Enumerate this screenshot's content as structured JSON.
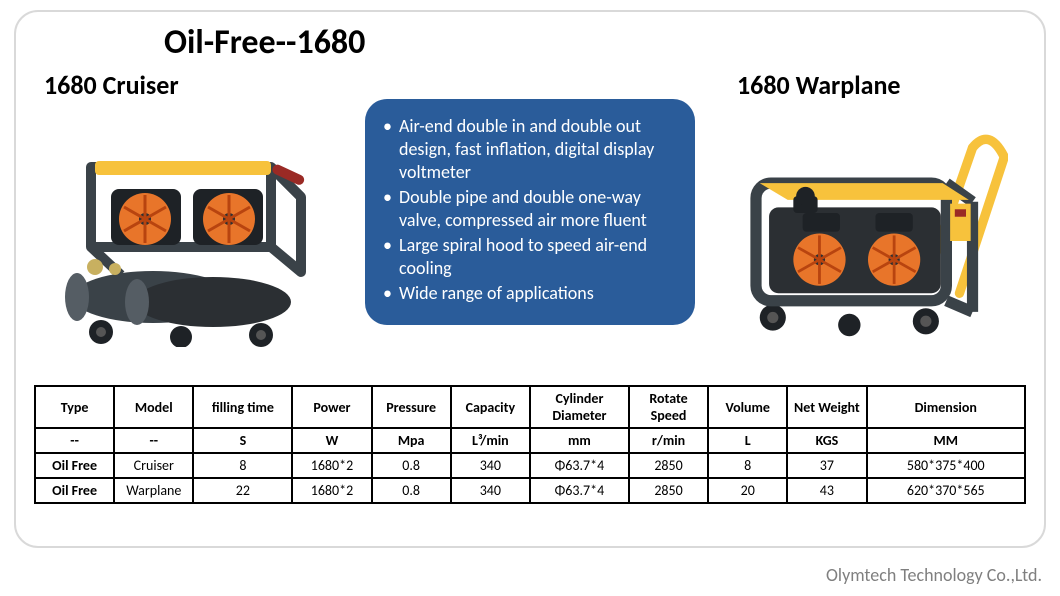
{
  "title": "Oil-Free--1680",
  "products": {
    "left": {
      "label": "1680 Cruiser"
    },
    "right": {
      "label": "1680 Warplane"
    }
  },
  "features_box": {
    "bg_color": "#2a5c9a",
    "text_color": "#ffffff",
    "items": [
      "Air-end double in and double out design, fast inflation, digital display voltmeter",
      "Double pipe and double one-way valve, compressed air more fluent",
      "Large spiral hood to speed air-end cooling",
      "Wide range of applications"
    ]
  },
  "spec_table": {
    "columns": [
      "Type",
      "Model",
      "filling time",
      "Power",
      "Pressure",
      "Capacity",
      "Cylinder Diameter",
      "Rotate Speed",
      "Volume",
      "Net Weight",
      "Dimension"
    ],
    "col_widths_pct": [
      8,
      8,
      10,
      8,
      8,
      8,
      10,
      8,
      8,
      8,
      16
    ],
    "rows": [
      [
        "--",
        "--",
        "S",
        "W",
        "Mpa",
        "L³/min",
        "mm",
        "r/min",
        "L",
        "KGS",
        "MM"
      ],
      [
        "Oil Free",
        "Cruiser",
        "8",
        "1680*2",
        "0.8",
        "340",
        "Φ63.7*4",
        "2850",
        "8",
        "37",
        "580*375*400"
      ],
      [
        "Oil Free",
        "Warplane",
        "22",
        "1680*2",
        "0.8",
        "340",
        "Φ63.7*4",
        "2850",
        "20",
        "43",
        "620*370*565"
      ]
    ]
  },
  "footer": "Olymtech Technology Co.,Ltd.",
  "colors": {
    "frame_dark": "#3a4248",
    "accent_orange": "#e8752a",
    "accent_yellow": "#f7c23c",
    "metal": "#2b2f33",
    "highlight": "#555d64"
  }
}
